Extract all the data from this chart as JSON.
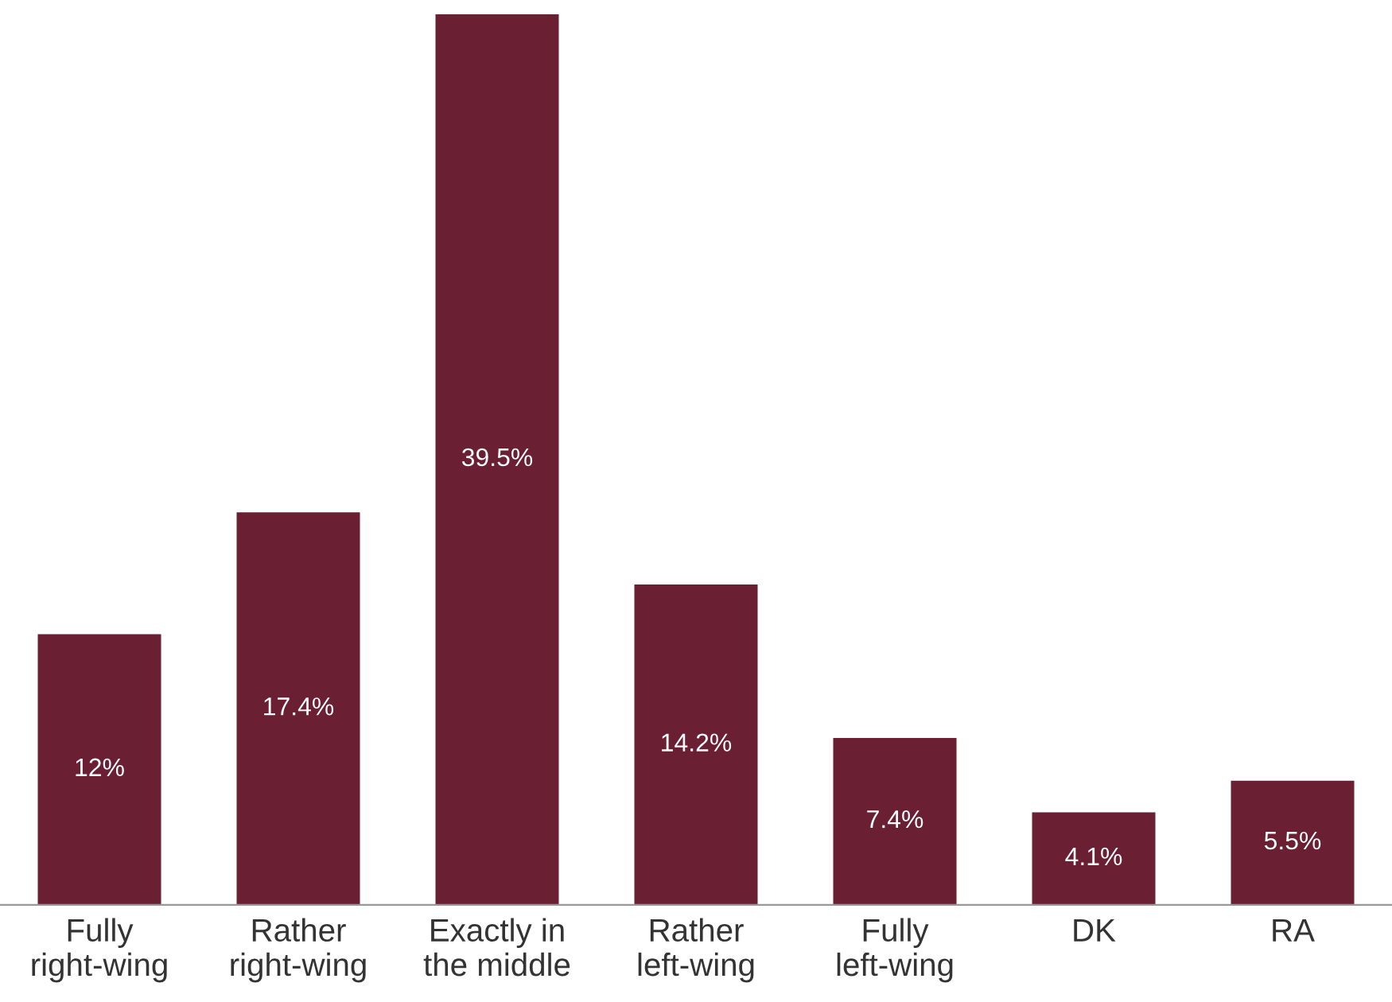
{
  "chart_data": {
    "type": "bar",
    "categories": [
      "Fully\nright-wing",
      "Rather\nright-wing",
      "Exactly in\nthe middle",
      "Rather\nleft-wing",
      "Fully\nleft-wing",
      "DK",
      "RA"
    ],
    "values": [
      12,
      17.4,
      39.5,
      14.2,
      7.4,
      4.1,
      5.5
    ],
    "value_labels": [
      "12%",
      "17.4%",
      "39.5%",
      "14.2%",
      "7.4%",
      "4.1%",
      "5.5%"
    ],
    "color": "#6b1f33",
    "grid": false,
    "legend": false
  }
}
